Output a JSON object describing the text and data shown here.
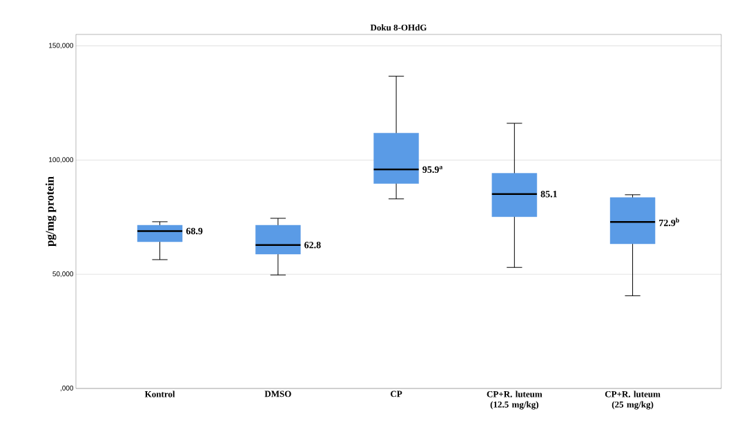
{
  "chart_data": {
    "type": "box",
    "title": "Doku 8-OHdG",
    "ylabel": "pg/mg protein",
    "categories": [
      "Kontrol",
      "DMSO",
      "CP",
      "CP+R. luteum (12.5 mg/kg)",
      "CP+R. luteum (25 mg/kg)"
    ],
    "boxes": [
      {
        "low": 56400,
        "q1": 64200,
        "median": 68900,
        "q3": 71500,
        "high": 73000
      },
      {
        "low": 49700,
        "q1": 58800,
        "median": 62800,
        "q3": 71500,
        "high": 74500
      },
      {
        "low": 83000,
        "q1": 89700,
        "median": 95900,
        "q3": 111800,
        "high": 136700
      },
      {
        "low": 53000,
        "q1": 75200,
        "median": 85100,
        "q3": 94200,
        "high": 116100
      },
      {
        "low": 40600,
        "q1": 63300,
        "median": 72900,
        "q3": 83600,
        "high": 84800
      }
    ],
    "color": "#5a9be6",
    "ylim": [
      0,
      155000
    ],
    "yticks": [
      {
        "value": 0,
        "label": ",000"
      },
      {
        "value": 50000,
        "label": "50,000"
      },
      {
        "value": 100000,
        "label": "100,000"
      },
      {
        "value": 150000,
        "label": "150,000"
      }
    ],
    "grid": "y",
    "annotations": [
      {
        "text": "68.9",
        "x": "Kontrol",
        "y": 68900
      },
      {
        "text": "62.8",
        "x": "DMSO",
        "y": 62800
      },
      {
        "text": "95.9$^{a}$",
        "x": "CP",
        "y": 95900
      },
      {
        "text": "85.1",
        "x": "CP+R. luteum (12.5 mg/kg)",
        "y": 85100
      },
      {
        "text": "72.9$^{b}$",
        "x": "CP+R. luteum (25 mg/kg)",
        "y": 72900
      }
    ]
  }
}
